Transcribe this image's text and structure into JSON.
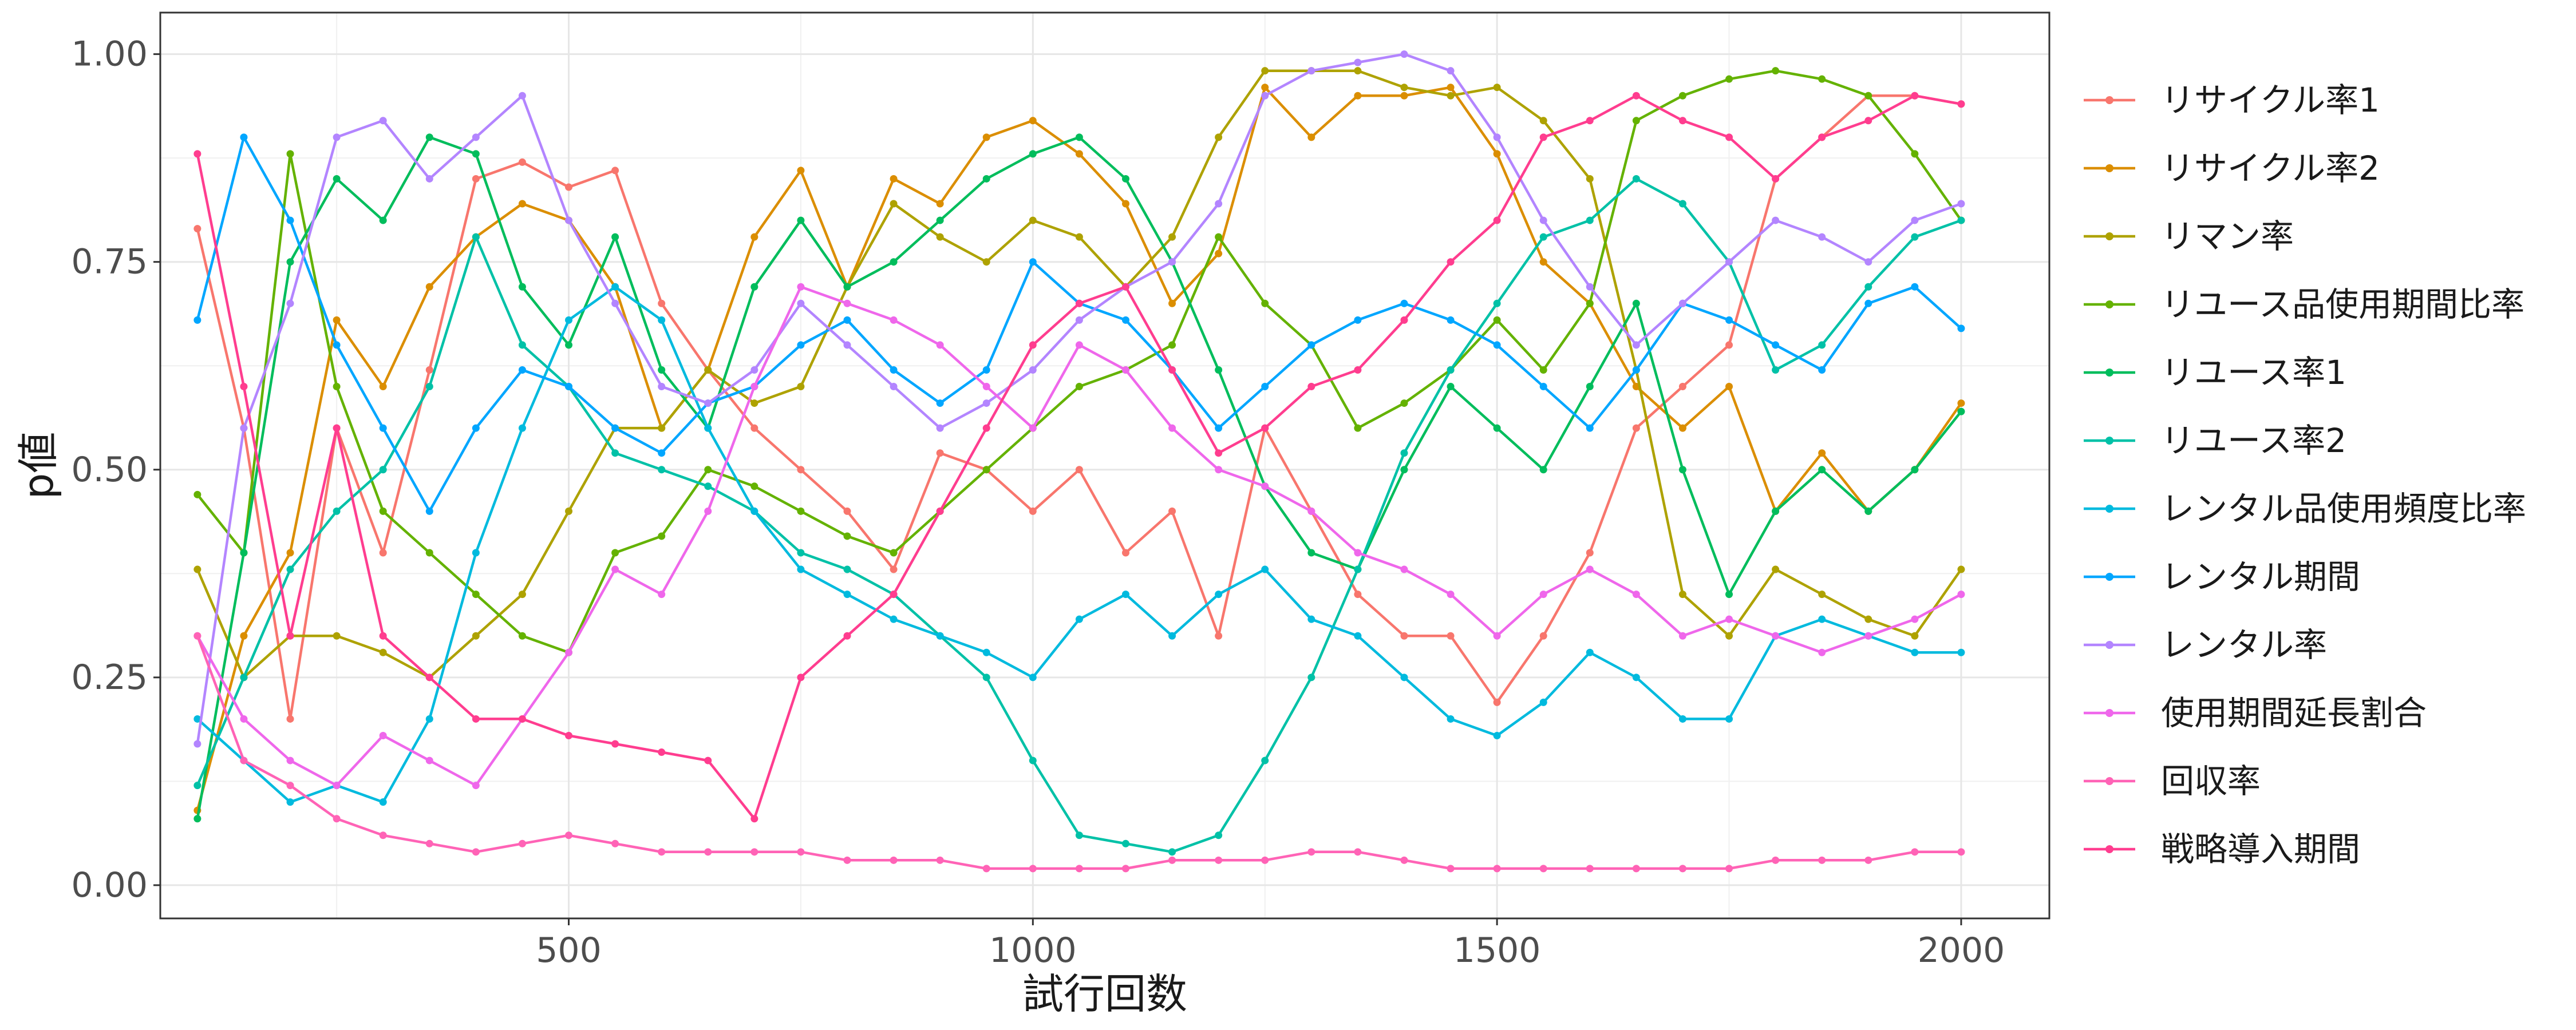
{
  "chart_data": {
    "type": "line",
    "xlabel": "試行回数",
    "ylabel": "p値",
    "xlim": [
      60,
      2095
    ],
    "ylim": [
      -0.04,
      1.05
    ],
    "x_ticks": [
      500,
      1000,
      1500,
      2000
    ],
    "x_tick_labels": [
      "500",
      "1000",
      "1500",
      "2000"
    ],
    "y_ticks": [
      0,
      0.25,
      0.5,
      0.75,
      1
    ],
    "y_tick_labels": [
      "0.00",
      "0.25",
      "0.50",
      "0.75",
      "1.00"
    ],
    "grid": true,
    "legend_position": "right",
    "x": [
      100,
      150,
      200,
      250,
      300,
      350,
      400,
      450,
      500,
      550,
      600,
      650,
      700,
      750,
      800,
      850,
      900,
      950,
      1000,
      1050,
      1100,
      1150,
      1200,
      1250,
      1300,
      1350,
      1400,
      1450,
      1500,
      1550,
      1600,
      1650,
      1700,
      1750,
      1800,
      1850,
      1900,
      1950,
      2000
    ],
    "series": [
      {
        "name": "リサイクル率1",
        "color": "#F8766D",
        "values": [
          0.79,
          0.55,
          0.2,
          0.55,
          0.4,
          0.62,
          0.85,
          0.87,
          0.84,
          0.86,
          0.7,
          0.62,
          0.55,
          0.5,
          0.45,
          0.38,
          0.52,
          0.5,
          0.45,
          0.5,
          0.4,
          0.45,
          0.3,
          0.55,
          0.45,
          0.35,
          0.3,
          0.3,
          0.22,
          0.3,
          0.4,
          0.55,
          0.6,
          0.65,
          0.85,
          0.9,
          0.95,
          0.95,
          0.94
        ]
      },
      {
        "name": "リサイクル率2",
        "color": "#DB8E00",
        "values": [
          0.09,
          0.3,
          0.4,
          0.68,
          0.6,
          0.72,
          0.78,
          0.82,
          0.8,
          0.72,
          0.55,
          0.62,
          0.78,
          0.86,
          0.72,
          0.85,
          0.82,
          0.9,
          0.92,
          0.88,
          0.82,
          0.7,
          0.76,
          0.96,
          0.9,
          0.95,
          0.95,
          0.96,
          0.88,
          0.75,
          0.7,
          0.6,
          0.55,
          0.6,
          0.45,
          0.52,
          0.45,
          0.5,
          0.58
        ]
      },
      {
        "name": "リマン率",
        "color": "#AEA200",
        "values": [
          0.38,
          0.25,
          0.3,
          0.3,
          0.28,
          0.25,
          0.3,
          0.35,
          0.45,
          0.55,
          0.55,
          0.62,
          0.58,
          0.6,
          0.72,
          0.82,
          0.78,
          0.75,
          0.8,
          0.78,
          0.72,
          0.78,
          0.9,
          0.98,
          0.98,
          0.98,
          0.96,
          0.95,
          0.96,
          0.92,
          0.85,
          0.62,
          0.35,
          0.3,
          0.38,
          0.35,
          0.32,
          0.3,
          0.38
        ]
      },
      {
        "name": "リユース品使用期間比率",
        "color": "#64B200",
        "values": [
          0.47,
          0.4,
          0.88,
          0.6,
          0.45,
          0.4,
          0.35,
          0.3,
          0.28,
          0.4,
          0.42,
          0.5,
          0.48,
          0.45,
          0.42,
          0.4,
          0.45,
          0.5,
          0.55,
          0.6,
          0.62,
          0.65,
          0.78,
          0.7,
          0.65,
          0.55,
          0.58,
          0.62,
          0.68,
          0.62,
          0.7,
          0.92,
          0.95,
          0.97,
          0.98,
          0.97,
          0.95,
          0.88,
          0.8
        ]
      },
      {
        "name": "リユース率1",
        "color": "#00BD5C",
        "values": [
          0.08,
          0.4,
          0.75,
          0.85,
          0.8,
          0.9,
          0.88,
          0.72,
          0.65,
          0.78,
          0.62,
          0.55,
          0.72,
          0.8,
          0.72,
          0.75,
          0.8,
          0.85,
          0.88,
          0.9,
          0.85,
          0.75,
          0.62,
          0.48,
          0.4,
          0.38,
          0.5,
          0.6,
          0.55,
          0.5,
          0.6,
          0.7,
          0.5,
          0.35,
          0.45,
          0.5,
          0.45,
          0.5,
          0.57
        ]
      },
      {
        "name": "リユース率2",
        "color": "#00C1A7",
        "values": [
          0.12,
          0.25,
          0.38,
          0.45,
          0.5,
          0.6,
          0.78,
          0.65,
          0.6,
          0.52,
          0.5,
          0.48,
          0.45,
          0.4,
          0.38,
          0.35,
          0.3,
          0.25,
          0.15,
          0.06,
          0.05,
          0.04,
          0.06,
          0.15,
          0.25,
          0.38,
          0.52,
          0.62,
          0.7,
          0.78,
          0.8,
          0.85,
          0.82,
          0.75,
          0.62,
          0.65,
          0.72,
          0.78,
          0.8
        ]
      },
      {
        "name": "レンタル品使用頻度比率",
        "color": "#00BADE",
        "values": [
          0.2,
          0.15,
          0.1,
          0.12,
          0.1,
          0.2,
          0.4,
          0.55,
          0.68,
          0.72,
          0.68,
          0.55,
          0.45,
          0.38,
          0.35,
          0.32,
          0.3,
          0.28,
          0.25,
          0.32,
          0.35,
          0.3,
          0.35,
          0.38,
          0.32,
          0.3,
          0.25,
          0.2,
          0.18,
          0.22,
          0.28,
          0.25,
          0.2,
          0.2,
          0.3,
          0.32,
          0.3,
          0.28,
          0.28
        ]
      },
      {
        "name": "レンタル期間",
        "color": "#00A6FF",
        "values": [
          0.68,
          0.9,
          0.8,
          0.65,
          0.55,
          0.45,
          0.55,
          0.62,
          0.6,
          0.55,
          0.52,
          0.58,
          0.6,
          0.65,
          0.68,
          0.62,
          0.58,
          0.62,
          0.75,
          0.7,
          0.68,
          0.62,
          0.55,
          0.6,
          0.65,
          0.68,
          0.7,
          0.68,
          0.65,
          0.6,
          0.55,
          0.62,
          0.7,
          0.68,
          0.65,
          0.62,
          0.7,
          0.72,
          0.67
        ]
      },
      {
        "name": "レンタル率",
        "color": "#B385FF",
        "values": [
          0.17,
          0.55,
          0.7,
          0.9,
          0.92,
          0.85,
          0.9,
          0.95,
          0.8,
          0.7,
          0.6,
          0.58,
          0.62,
          0.7,
          0.65,
          0.6,
          0.55,
          0.58,
          0.62,
          0.68,
          0.72,
          0.75,
          0.82,
          0.95,
          0.98,
          0.99,
          1.0,
          0.98,
          0.9,
          0.8,
          0.72,
          0.65,
          0.7,
          0.75,
          0.8,
          0.78,
          0.75,
          0.8,
          0.82
        ]
      },
      {
        "name": "使用期間延長割合",
        "color": "#EF67EB",
        "values": [
          0.3,
          0.2,
          0.15,
          0.12,
          0.18,
          0.15,
          0.12,
          0.2,
          0.28,
          0.38,
          0.35,
          0.45,
          0.6,
          0.72,
          0.7,
          0.68,
          0.65,
          0.6,
          0.55,
          0.65,
          0.62,
          0.55,
          0.5,
          0.48,
          0.45,
          0.4,
          0.38,
          0.35,
          0.3,
          0.35,
          0.38,
          0.35,
          0.3,
          0.32,
          0.3,
          0.28,
          0.3,
          0.32,
          0.35
        ]
      },
      {
        "name": "回収率",
        "color": "#FF63B6",
        "values": [
          0.3,
          0.15,
          0.12,
          0.08,
          0.06,
          0.05,
          0.04,
          0.05,
          0.06,
          0.05,
          0.04,
          0.04,
          0.04,
          0.04,
          0.03,
          0.03,
          0.03,
          0.02,
          0.02,
          0.02,
          0.02,
          0.03,
          0.03,
          0.03,
          0.04,
          0.04,
          0.03,
          0.02,
          0.02,
          0.02,
          0.02,
          0.02,
          0.02,
          0.02,
          0.03,
          0.03,
          0.03,
          0.04,
          0.04
        ]
      },
      {
        "name": "戦略導入期間",
        "color": "#FF3D8F",
        "values": [
          0.88,
          0.6,
          0.3,
          0.55,
          0.3,
          0.25,
          0.2,
          0.2,
          0.18,
          0.17,
          0.16,
          0.15,
          0.08,
          0.25,
          0.3,
          0.35,
          0.45,
          0.55,
          0.65,
          0.7,
          0.72,
          0.62,
          0.52,
          0.55,
          0.6,
          0.62,
          0.68,
          0.75,
          0.8,
          0.9,
          0.92,
          0.95,
          0.92,
          0.9,
          0.85,
          0.9,
          0.92,
          0.95,
          0.94
        ]
      }
    ]
  }
}
